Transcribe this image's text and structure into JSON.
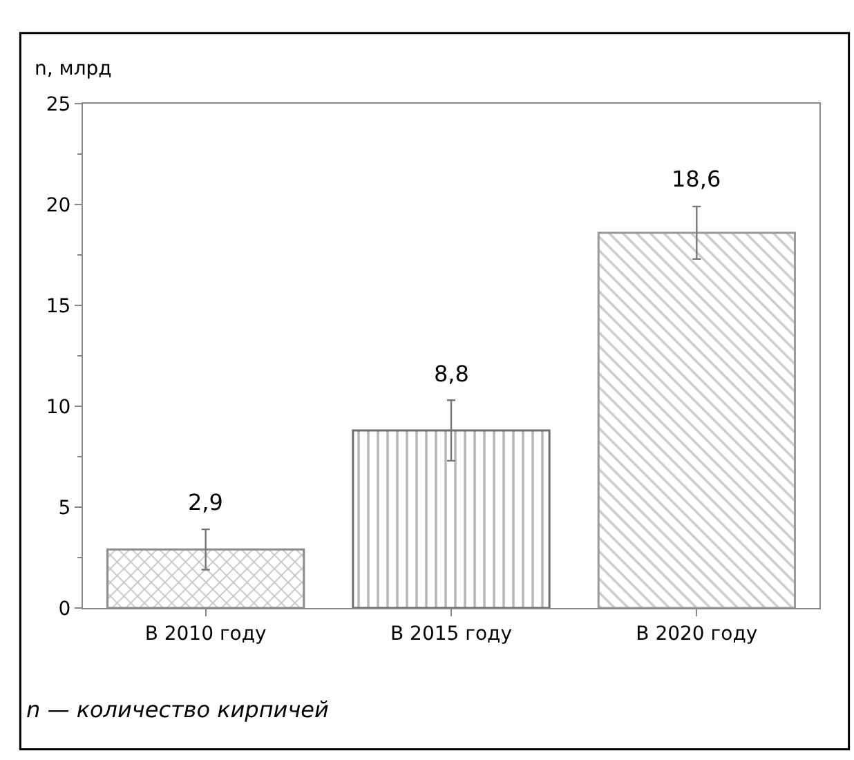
{
  "chart_data": {
    "type": "bar",
    "ylabel": "n, млрд",
    "categories": [
      "В 2010 году",
      "В 2015 году",
      "В 2020 году"
    ],
    "values": [
      2.9,
      8.8,
      18.6
    ],
    "colors": [
      "#8c8c8c",
      "#6e6e6e",
      "#9a9a9a"
    ],
    "errors": [
      1.0,
      1.5,
      1.3
    ],
    "value_labels": [
      "2,9",
      "8,8",
      "18,6"
    ],
    "ylim": [
      0,
      25
    ],
    "yticks": [
      0,
      5,
      10,
      15,
      20,
      25
    ],
    "legend": false,
    "annotations": [
      "n — количество кирпичей"
    ]
  }
}
